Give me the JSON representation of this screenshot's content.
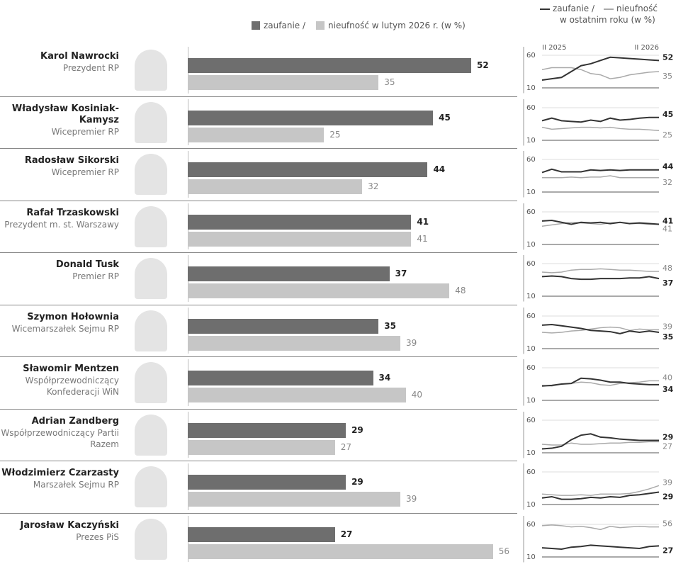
{
  "chart_data": [
    {
      "type": "bar",
      "categories": [
        "Karol Nawrocki",
        "Władysław Kosiniak-Kamysz",
        "Radosław Sikorski",
        "Rafał Trzaskowski",
        "Donald Tusk",
        "Szymon Hołownia",
        "Sławomir Mentzen",
        "Adrian Zandberg",
        "Włodzimierz Czarzasty",
        "Jarosław Kaczyński"
      ],
      "roles": [
        "Prezydent RP",
        "Wicepremier RP",
        "Wicepremier RP",
        "Prezydent m. st. Warszawy",
        "Premier RP",
        "Wicemarszałek Sejmu RP",
        "Współprzewodniczący Konfederacji WiN",
        "Współprzewodniczący Partii Razem",
        "Marszałek Sejmu RP",
        "Prezes PiS"
      ],
      "series": [
        {
          "name": "zaufanie /",
          "color": "#6e6e6e",
          "values": [
            52,
            45,
            44,
            41,
            37,
            35,
            34,
            29,
            29,
            27
          ]
        },
        {
          "name": "nieufność w lutym 2026 r. (w %)",
          "color": "#c6c6c6",
          "values": [
            35,
            25,
            32,
            41,
            48,
            39,
            40,
            27,
            39,
            56
          ]
        }
      ],
      "xlim": [
        0,
        65
      ]
    },
    {
      "type": "line",
      "legend_note": "w ostatnim roku (w %)",
      "series": [
        {
          "name": "zaufanie /",
          "color": "#333333"
        },
        {
          "name": "nieufność",
          "color": "#aaaaaa"
        }
      ],
      "x": [
        "II 2025",
        null,
        null,
        null,
        null,
        null,
        null,
        null,
        null,
        null,
        null,
        null,
        "II 2026"
      ],
      "ylim": [
        10,
        60
      ],
      "yticks": [
        10,
        60
      ],
      "panels": [
        [
          [
            22,
            24,
            26,
            35,
            44,
            47,
            52,
            57,
            56,
            55,
            54,
            53,
            52
          ],
          [
            38,
            41,
            41,
            41,
            38,
            32,
            30,
            24,
            26,
            30,
            32,
            34,
            35
          ]
        ],
        [
          [
            40,
            44,
            40,
            39,
            38,
            41,
            39,
            44,
            41,
            42,
            44,
            45,
            45
          ],
          [
            30,
            27,
            28,
            29,
            30,
            30,
            29,
            30,
            28,
            27,
            27,
            26,
            25
          ]
        ],
        [
          [
            40,
            45,
            41,
            41,
            41,
            44,
            43,
            44,
            43,
            44,
            44,
            44,
            44
          ],
          [
            32,
            32,
            32,
            33,
            32,
            33,
            33,
            35,
            32,
            32,
            32,
            32,
            32
          ]
        ],
        [
          [
            46,
            47,
            44,
            41,
            44,
            43,
            44,
            42,
            44,
            42,
            43,
            42,
            41
          ],
          [
            38,
            40,
            42,
            44,
            43,
            42,
            41,
            43,
            44,
            42,
            42,
            41,
            41
          ]
        ],
        [
          [
            40,
            41,
            40,
            37,
            36,
            36,
            37,
            37,
            37,
            38,
            38,
            40,
            37
          ],
          [
            47,
            46,
            47,
            50,
            51,
            51,
            52,
            51,
            50,
            50,
            49,
            48,
            48
          ]
        ],
        [
          [
            46,
            47,
            45,
            43,
            41,
            38,
            37,
            36,
            33,
            37,
            35,
            37,
            35
          ],
          [
            35,
            34,
            35,
            37,
            38,
            40,
            42,
            43,
            42,
            38,
            40,
            39,
            39
          ]
        ],
        [
          [
            32,
            33,
            35,
            36,
            44,
            43,
            41,
            38,
            38,
            36,
            35,
            34,
            34
          ],
          [
            33,
            32,
            35,
            36,
            38,
            37,
            34,
            33,
            36,
            37,
            38,
            40,
            40
          ]
        ],
        [
          [
            16,
            17,
            20,
            30,
            37,
            39,
            34,
            33,
            31,
            30,
            29,
            29,
            29
          ],
          [
            23,
            22,
            22,
            25,
            23,
            23,
            24,
            25,
            25,
            26,
            26,
            27,
            27
          ]
        ],
        [
          [
            20,
            22,
            18,
            18,
            19,
            21,
            20,
            22,
            21,
            24,
            25,
            27,
            29
          ],
          [
            26,
            25,
            24,
            24,
            25,
            24,
            26,
            26,
            26,
            27,
            30,
            34,
            39
          ]
        ],
        [
          [
            24,
            23,
            22,
            25,
            26,
            28,
            27,
            26,
            25,
            24,
            23,
            26,
            27
          ],
          [
            58,
            59,
            58,
            56,
            57,
            55,
            52,
            57,
            55,
            56,
            57,
            56,
            56
          ]
        ]
      ]
    }
  ]
}
